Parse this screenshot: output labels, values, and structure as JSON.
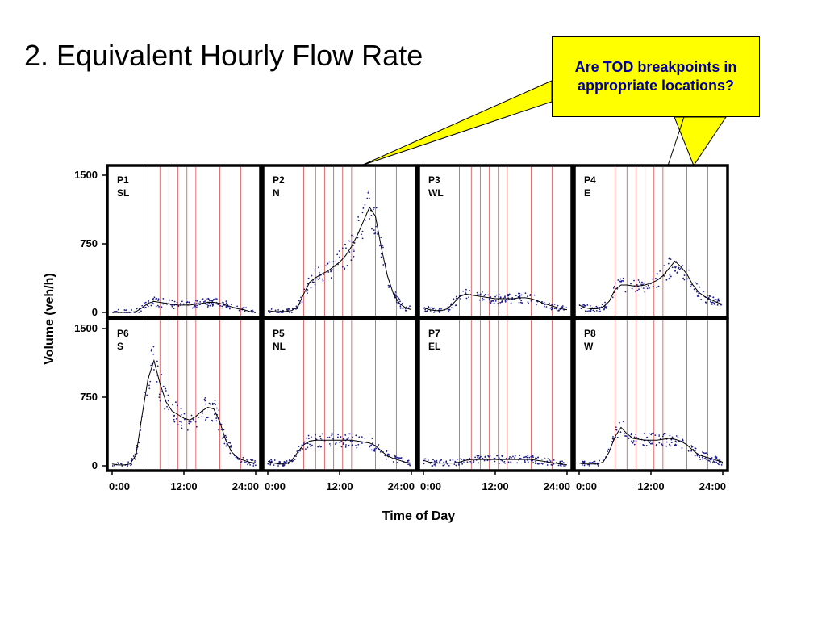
{
  "slide": {
    "title": "2. Equivalent Hourly Flow Rate",
    "callout_text": "Are TOD breakpoints in appropriate locations?"
  },
  "colors": {
    "callout_fill": "#ffff00",
    "callout_text": "#000099",
    "breakpoint_line": "#e07070",
    "points": "#1a1a8c",
    "trend": "#000000"
  },
  "chart_data": {
    "type": "scatter",
    "layout": "2x4 small multiples",
    "xlabel": "Time of Day",
    "ylabel": "Volume (veh/h)",
    "xlim": [
      0,
      24
    ],
    "ylim": [
      0,
      1500
    ],
    "xticks": [
      "0:00",
      "12:00",
      "24:00"
    ],
    "yticks": [
      "0",
      "750",
      "1500"
    ],
    "grid": false,
    "panels": [
      {
        "id": "P1",
        "dir": "SL",
        "row": 0,
        "col": 0,
        "breakpoints": [
          6,
          8,
          9.5,
          11,
          12.5,
          14,
          18,
          21.5
        ],
        "trend": [
          [
            0,
            0
          ],
          [
            1,
            0
          ],
          [
            2,
            0
          ],
          [
            3,
            0
          ],
          [
            4,
            10
          ],
          [
            5,
            50
          ],
          [
            6,
            100
          ],
          [
            7,
            120
          ],
          [
            8,
            110
          ],
          [
            9,
            100
          ],
          [
            10,
            90
          ],
          [
            11,
            80
          ],
          [
            12,
            80
          ],
          [
            13,
            80
          ],
          [
            14,
            90
          ],
          [
            15,
            100
          ],
          [
            16,
            110
          ],
          [
            17,
            110
          ],
          [
            18,
            100
          ],
          [
            19,
            80
          ],
          [
            20,
            60
          ],
          [
            21,
            40
          ],
          [
            22,
            30
          ],
          [
            23,
            10
          ],
          [
            24,
            0
          ]
        ]
      },
      {
        "id": "P2",
        "dir": "N",
        "row": 0,
        "col": 1,
        "breakpoints": [
          6,
          8,
          9.5,
          11,
          12.5,
          14,
          18,
          21.5
        ],
        "trend": [
          [
            0,
            20
          ],
          [
            1,
            10
          ],
          [
            2,
            10
          ],
          [
            3,
            10
          ],
          [
            4,
            20
          ],
          [
            5,
            60
          ],
          [
            6,
            200
          ],
          [
            7,
            330
          ],
          [
            8,
            380
          ],
          [
            9,
            420
          ],
          [
            10,
            450
          ],
          [
            11,
            500
          ],
          [
            12,
            550
          ],
          [
            13,
            620
          ],
          [
            14,
            720
          ],
          [
            15,
            850
          ],
          [
            16,
            1000
          ],
          [
            17,
            1150
          ],
          [
            18,
            1050
          ],
          [
            19,
            700
          ],
          [
            20,
            400
          ],
          [
            21,
            200
          ],
          [
            22,
            100
          ],
          [
            23,
            50
          ],
          [
            24,
            30
          ]
        ]
      },
      {
        "id": "P3",
        "dir": "WL",
        "row": 0,
        "col": 2,
        "breakpoints": [
          6,
          8,
          9.5,
          11,
          12.5,
          14,
          18,
          21.5
        ],
        "trend": [
          [
            0,
            50
          ],
          [
            1,
            30
          ],
          [
            2,
            20
          ],
          [
            3,
            20
          ],
          [
            4,
            40
          ],
          [
            5,
            100
          ],
          [
            6,
            170
          ],
          [
            7,
            200
          ],
          [
            8,
            190
          ],
          [
            9,
            180
          ],
          [
            10,
            170
          ],
          [
            11,
            160
          ],
          [
            12,
            150
          ],
          [
            13,
            150
          ],
          [
            14,
            150
          ],
          [
            15,
            150
          ],
          [
            16,
            160
          ],
          [
            17,
            160
          ],
          [
            18,
            150
          ],
          [
            19,
            130
          ],
          [
            20,
            100
          ],
          [
            21,
            80
          ],
          [
            22,
            60
          ],
          [
            23,
            40
          ],
          [
            24,
            30
          ]
        ]
      },
      {
        "id": "P4",
        "dir": "E",
        "row": 0,
        "col": 3,
        "breakpoints": [
          6,
          8,
          9.5,
          11,
          12.5,
          14,
          18,
          21.5
        ],
        "trend": [
          [
            0,
            80
          ],
          [
            1,
            50
          ],
          [
            2,
            40
          ],
          [
            3,
            40
          ],
          [
            4,
            60
          ],
          [
            5,
            120
          ],
          [
            6,
            250
          ],
          [
            7,
            300
          ],
          [
            8,
            300
          ],
          [
            9,
            290
          ],
          [
            10,
            290
          ],
          [
            11,
            300
          ],
          [
            12,
            320
          ],
          [
            13,
            350
          ],
          [
            14,
            400
          ],
          [
            15,
            480
          ],
          [
            16,
            560
          ],
          [
            17,
            500
          ],
          [
            18,
            420
          ],
          [
            19,
            300
          ],
          [
            20,
            220
          ],
          [
            21,
            170
          ],
          [
            22,
            140
          ],
          [
            23,
            110
          ],
          [
            24,
            90
          ]
        ]
      },
      {
        "id": "P6",
        "dir": "S",
        "row": 1,
        "col": 0,
        "breakpoints": [
          6,
          8,
          9.5,
          11,
          12.5,
          14,
          18,
          21.5
        ],
        "trend": [
          [
            0,
            20
          ],
          [
            1,
            10
          ],
          [
            2,
            10
          ],
          [
            3,
            20
          ],
          [
            4,
            120
          ],
          [
            5,
            550
          ],
          [
            6,
            950
          ],
          [
            7,
            1150
          ],
          [
            8,
            900
          ],
          [
            9,
            700
          ],
          [
            10,
            600
          ],
          [
            11,
            560
          ],
          [
            12,
            520
          ],
          [
            13,
            500
          ],
          [
            14,
            540
          ],
          [
            15,
            600
          ],
          [
            16,
            640
          ],
          [
            17,
            620
          ],
          [
            18,
            480
          ],
          [
            19,
            280
          ],
          [
            20,
            150
          ],
          [
            21,
            90
          ],
          [
            22,
            60
          ],
          [
            23,
            40
          ],
          [
            24,
            30
          ]
        ]
      },
      {
        "id": "P5",
        "dir": "NL",
        "row": 1,
        "col": 1,
        "breakpoints": [
          6,
          8,
          9.5,
          11,
          12.5,
          14,
          18,
          21.5
        ],
        "trend": [
          [
            0,
            50
          ],
          [
            1,
            30
          ],
          [
            2,
            20
          ],
          [
            3,
            20
          ],
          [
            4,
            60
          ],
          [
            5,
            150
          ],
          [
            6,
            230
          ],
          [
            7,
            270
          ],
          [
            8,
            280
          ],
          [
            9,
            280
          ],
          [
            10,
            280
          ],
          [
            11,
            280
          ],
          [
            12,
            280
          ],
          [
            13,
            280
          ],
          [
            14,
            280
          ],
          [
            15,
            270
          ],
          [
            16,
            260
          ],
          [
            17,
            250
          ],
          [
            18,
            220
          ],
          [
            19,
            160
          ],
          [
            20,
            110
          ],
          [
            21,
            80
          ],
          [
            22,
            60
          ],
          [
            23,
            40
          ],
          [
            24,
            30
          ]
        ]
      },
      {
        "id": "P7",
        "dir": "EL",
        "row": 1,
        "col": 2,
        "breakpoints": [
          6,
          8,
          9.5,
          11,
          12.5,
          14,
          18,
          21.5
        ],
        "trend": [
          [
            0,
            60
          ],
          [
            1,
            40
          ],
          [
            2,
            30
          ],
          [
            3,
            30
          ],
          [
            4,
            30
          ],
          [
            5,
            30
          ],
          [
            6,
            40
          ],
          [
            7,
            60
          ],
          [
            8,
            70
          ],
          [
            9,
            70
          ],
          [
            10,
            70
          ],
          [
            11,
            70
          ],
          [
            12,
            70
          ],
          [
            13,
            70
          ],
          [
            14,
            70
          ],
          [
            15,
            70
          ],
          [
            16,
            70
          ],
          [
            17,
            70
          ],
          [
            18,
            70
          ],
          [
            19,
            60
          ],
          [
            20,
            50
          ],
          [
            21,
            40
          ],
          [
            22,
            30
          ],
          [
            23,
            20
          ],
          [
            24,
            10
          ]
        ]
      },
      {
        "id": "P8",
        "dir": "W",
        "row": 1,
        "col": 3,
        "breakpoints": [
          6,
          8,
          9.5,
          11,
          12.5,
          14,
          18,
          21.5
        ],
        "trend": [
          [
            0,
            30
          ],
          [
            1,
            20
          ],
          [
            2,
            20
          ],
          [
            3,
            20
          ],
          [
            4,
            40
          ],
          [
            5,
            150
          ],
          [
            6,
            320
          ],
          [
            7,
            420
          ],
          [
            8,
            350
          ],
          [
            9,
            300
          ],
          [
            10,
            290
          ],
          [
            11,
            280
          ],
          [
            12,
            280
          ],
          [
            13,
            280
          ],
          [
            14,
            290
          ],
          [
            15,
            300
          ],
          [
            16,
            290
          ],
          [
            17,
            270
          ],
          [
            18,
            230
          ],
          [
            19,
            170
          ],
          [
            20,
            120
          ],
          [
            21,
            100
          ],
          [
            22,
            80
          ],
          [
            23,
            60
          ],
          [
            24,
            40
          ]
        ]
      }
    ]
  }
}
